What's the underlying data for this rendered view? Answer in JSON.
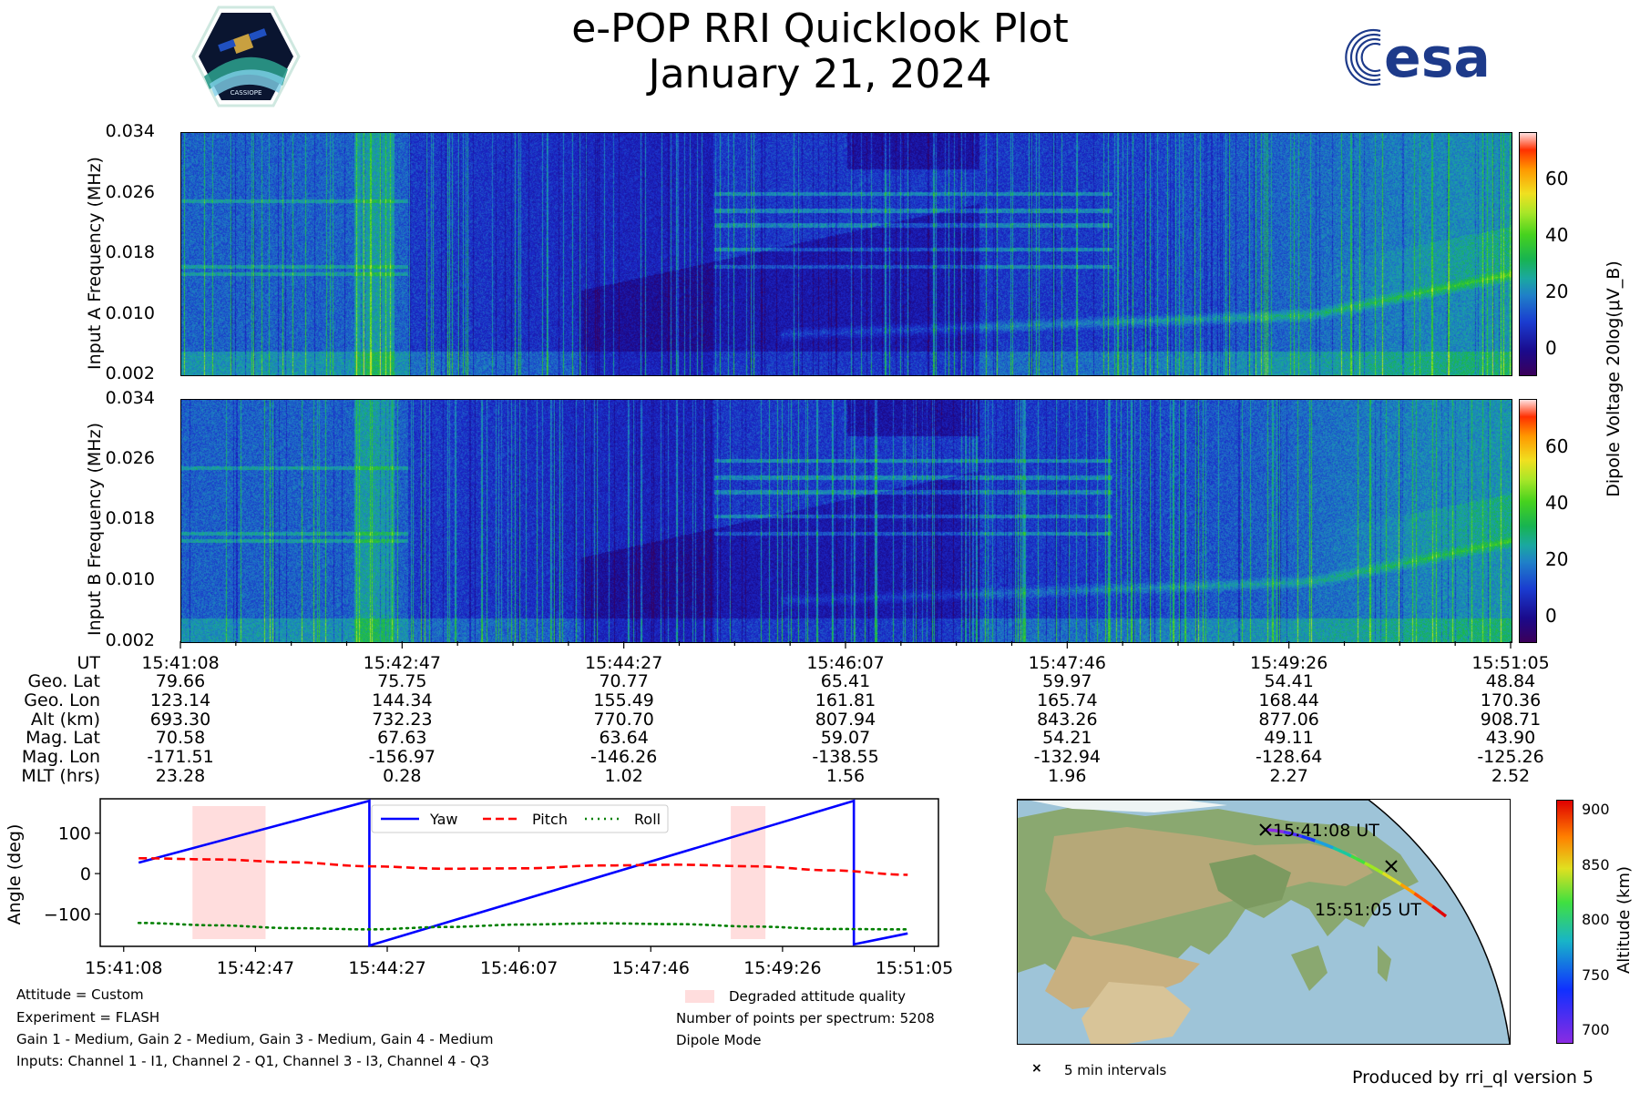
{
  "header": {
    "title": "e-POP RRI Quicklook Plot",
    "date": "January 21, 2024",
    "logo_left_text": "CASSIOPE",
    "logo_right_text": "esa"
  },
  "colors": {
    "yaw": "#0000ff",
    "pitch": "#ff0000",
    "roll": "#008000",
    "degraded": "#ffdddd"
  },
  "chart_data": [
    {
      "type": "heatmap",
      "name": "Input A",
      "ylabel": "Input A Frequency (MHz)",
      "yticks": [
        "0.002",
        "0.010",
        "0.018",
        "0.026",
        "0.034"
      ],
      "ylim": [
        0.002,
        0.034
      ],
      "colorbar_label": "Dipole Voltage 20log(μV_B)",
      "colorbar_ticks": [
        "0",
        "20",
        "40",
        "60"
      ],
      "colorbar_range": [
        -10,
        75
      ]
    },
    {
      "type": "heatmap",
      "name": "Input B",
      "ylabel": "Input B Frequency (MHz)",
      "yticks": [
        "0.002",
        "0.010",
        "0.018",
        "0.026",
        "0.034"
      ],
      "ylim": [
        0.002,
        0.034
      ],
      "colorbar_ticks": [
        "0",
        "20",
        "40",
        "60"
      ],
      "colorbar_range": [
        -10,
        75
      ]
    },
    {
      "type": "table",
      "name": "ephemeris",
      "row_labels": [
        "UT",
        "Geo. Lat",
        "Geo. Lon",
        "Alt (km)",
        "Mag. Lat",
        "Mag. Lon",
        "MLT (hrs)"
      ],
      "columns": [
        [
          "15:41:08",
          "79.66",
          "123.14",
          "693.30",
          "70.58",
          "-171.51",
          "23.28"
        ],
        [
          "15:42:47",
          "75.75",
          "144.34",
          "732.23",
          "67.63",
          "-156.97",
          "0.28"
        ],
        [
          "15:44:27",
          "70.77",
          "155.49",
          "770.70",
          "63.64",
          "-146.26",
          "1.02"
        ],
        [
          "15:46:07",
          "65.41",
          "161.81",
          "807.94",
          "59.07",
          "-138.55",
          "1.56"
        ],
        [
          "15:47:46",
          "59.97",
          "165.74",
          "843.26",
          "54.21",
          "-132.94",
          "1.96"
        ],
        [
          "15:49:26",
          "54.41",
          "168.44",
          "877.06",
          "49.11",
          "-128.64",
          "2.27"
        ],
        [
          "15:51:05",
          "48.84",
          "170.36",
          "908.71",
          "43.90",
          "-125.26",
          "2.52"
        ]
      ]
    },
    {
      "type": "line",
      "name": "attitude",
      "ylabel": "Angle (deg)",
      "yticks": [
        "100",
        "0",
        "−100"
      ],
      "ylim": [
        -180,
        185
      ],
      "xticks": [
        "15:41:08",
        "15:42:47",
        "15:44:27",
        "15:46:07",
        "15:47:46",
        "15:49:26",
        "15:51:05"
      ],
      "xlim_min": [
        0,
        10.2
      ],
      "legend": "top-center",
      "series": [
        {
          "name": "Yaw",
          "x": [
            0,
            3.0,
            3.0,
            9.3,
            9.3,
            10.0
          ],
          "values": [
            27,
            180,
            -178,
            180,
            -175,
            -148
          ]
        },
        {
          "name": "Pitch",
          "x": [
            0,
            1,
            2,
            3,
            4,
            5,
            6,
            7,
            8,
            9,
            10
          ],
          "values": [
            38,
            35,
            28,
            18,
            12,
            13,
            20,
            22,
            18,
            8,
            -3
          ]
        },
        {
          "name": "Roll",
          "x": [
            0,
            1,
            2,
            3,
            4,
            5,
            6,
            7,
            8,
            9,
            10
          ],
          "values": [
            -122,
            -128,
            -135,
            -138,
            -132,
            -126,
            -123,
            -125,
            -131,
            -137,
            -138
          ]
        }
      ],
      "degraded_intervals": [
        [
          0.7,
          1.65
        ],
        [
          7.7,
          8.15
        ]
      ],
      "degraded_label": "Degraded attitude quality"
    },
    {
      "type": "scatter",
      "name": "orbit-map",
      "start_label": "15:41:08 UT",
      "end_label": "15:51:05 UT",
      "marker_label": "5 min intervals",
      "colorbar_label": "Altitude (km)",
      "colorbar_ticks": [
        "700",
        "750",
        "800",
        "850",
        "900"
      ],
      "colorbar_range": [
        690,
        910
      ]
    }
  ],
  "info": {
    "left": [
      "Attitude = Custom",
      "Experiment = FLASH",
      "Gain 1 - Medium, Gain 2 - Medium, Gain 3 - Medium, Gain 4 - Medium",
      "Inputs: Channel 1 - I1, Channel 2 - Q1, Channel 3 - I3, Channel 4 - Q3"
    ],
    "right": [
      "Number of points per spectrum: 5208",
      "Dipole Mode"
    ],
    "footer": "Produced by rri_ql version 5"
  }
}
